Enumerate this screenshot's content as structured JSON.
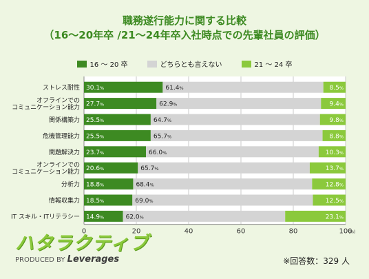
{
  "title": {
    "line1": "職務遂行能力に関する比較",
    "line2": "（16～20年卒 /21～24年卒入社時点での先輩社員の評価）"
  },
  "legend": [
    {
      "label": "16 ～ 20 卒",
      "color": "#3d8a22"
    },
    {
      "label": "どちらとも言えない",
      "color": "#d4d4d4"
    },
    {
      "label": "21 ～ 24 卒",
      "color": "#8bc93c"
    }
  ],
  "chart_data": {
    "type": "bar",
    "orientation": "horizontal-stacked",
    "categories": [
      [
        "ストレス耐性"
      ],
      [
        "オフラインでの",
        "コミュニケーション能力"
      ],
      [
        "関係構築力"
      ],
      [
        "危機管理能力"
      ],
      [
        "問題解決力"
      ],
      [
        "オンラインでの",
        "コミュニケーション能力"
      ],
      [
        "分析力"
      ],
      [
        "情報収集力"
      ],
      [
        "IT スキル・ITリテラシー"
      ]
    ],
    "series": [
      {
        "name": "16 ～ 20 卒",
        "values": [
          30.1,
          27.7,
          25.5,
          25.5,
          23.7,
          20.6,
          18.8,
          18.5,
          14.9
        ]
      },
      {
        "name": "どちらとも言えない",
        "values": [
          61.4,
          62.9,
          64.7,
          65.7,
          66.0,
          65.7,
          68.4,
          69.0,
          62.0
        ]
      },
      {
        "name": "21 ～ 24 卒",
        "values": [
          8.5,
          9.4,
          9.8,
          8.8,
          10.3,
          13.7,
          12.8,
          12.5,
          23.1
        ]
      }
    ],
    "xlim": [
      0,
      100
    ],
    "xticks": [
      "0",
      "20",
      "40",
      "60",
      "80",
      "100"
    ],
    "x_unit": "(%)",
    "unit_suffix": "%",
    "grid": "vertical"
  },
  "footer": {
    "logo": "ハタラクティブ",
    "produced_by": "PRODUCED BY",
    "brand": "Leverages",
    "respondents": "※回答数：329 人"
  }
}
